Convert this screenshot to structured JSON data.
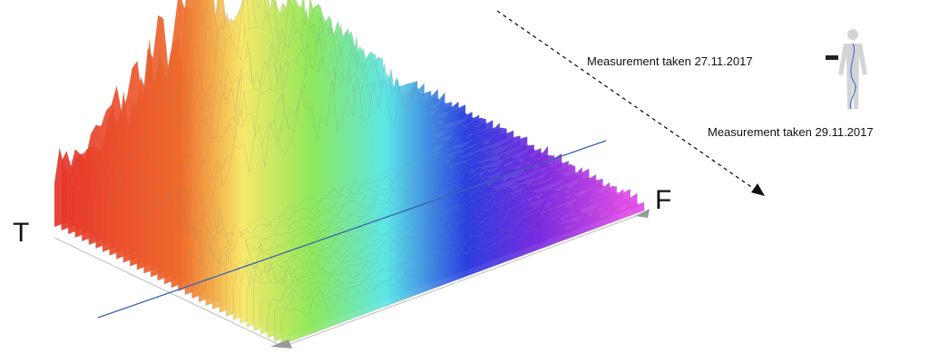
{
  "axes": {
    "time_label": "T",
    "frequency_label": "F"
  },
  "annotations": {
    "first": "Measurement taken 27.11.2017",
    "second": "Measurement taken 29.11.2017"
  }
}
